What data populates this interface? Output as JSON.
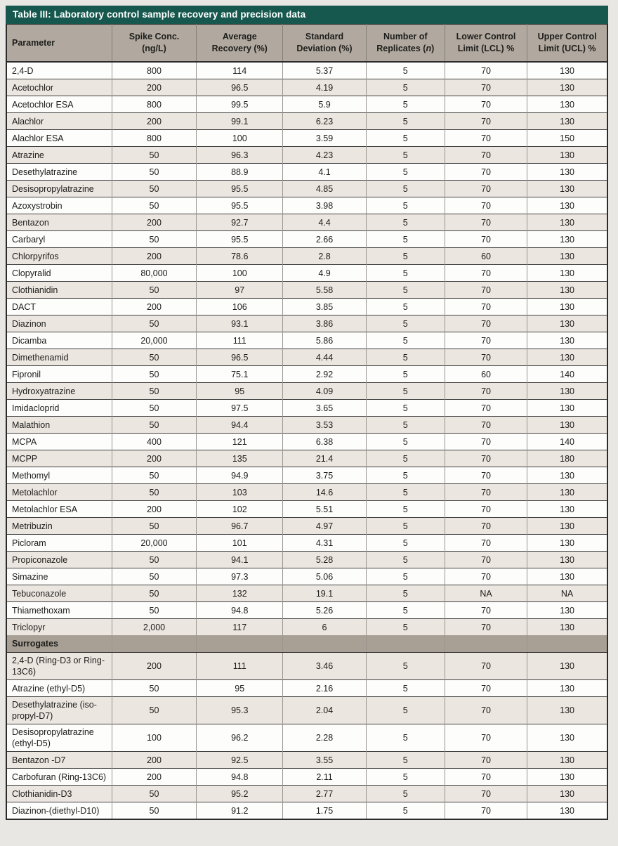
{
  "title": "Table III: Laboratory control sample recovery and precision data",
  "headers": {
    "parameter": "Parameter",
    "spike_1": "Spike Conc.",
    "spike_2": "(ng/L)",
    "recovery_1": "Average",
    "recovery_2": "Recovery (%)",
    "sd_1": "Standard",
    "sd_2": "Deviation (%)",
    "reps_1": "Number of",
    "reps_2_prefix": "Replicates (",
    "reps_2_italic": "n",
    "reps_2_suffix": ")",
    "lcl_1": "Lower Control",
    "lcl_2": "Limit (LCL) %",
    "ucl_1": "Upper Control",
    "ucl_2": "Limit (UCL) %"
  },
  "colors": {
    "title_bar": "#16584e",
    "header_bg": "#b1a99f",
    "section_bg": "#a8a095",
    "alt_row_bg": "#ece6e0",
    "row_bg": "#fdfdfc"
  },
  "rows": [
    [
      "2,4-D",
      "800",
      "114",
      "5.37",
      "5",
      "70",
      "130"
    ],
    [
      "Acetochlor",
      "200",
      "96.5",
      "4.19",
      "5",
      "70",
      "130"
    ],
    [
      "Acetochlor ESA",
      "800",
      "99.5",
      "5.9",
      "5",
      "70",
      "130"
    ],
    [
      "Alachlor",
      "200",
      "99.1",
      "6.23",
      "5",
      "70",
      "130"
    ],
    [
      "Alachlor ESA",
      "800",
      "100",
      "3.59",
      "5",
      "70",
      "150"
    ],
    [
      "Atrazine",
      "50",
      "96.3",
      "4.23",
      "5",
      "70",
      "130"
    ],
    [
      "Desethylatrazine",
      "50",
      "88.9",
      "4.1",
      "5",
      "70",
      "130"
    ],
    [
      "Desisopropylatrazine",
      "50",
      "95.5",
      "4.85",
      "5",
      "70",
      "130"
    ],
    [
      "Azoxystrobin",
      "50",
      "95.5",
      "3.98",
      "5",
      "70",
      "130"
    ],
    [
      "Bentazon",
      "200",
      "92.7",
      "4.4",
      "5",
      "70",
      "130"
    ],
    [
      "Carbaryl",
      "50",
      "95.5",
      "2.66",
      "5",
      "70",
      "130"
    ],
    [
      "Chlorpyrifos",
      "200",
      "78.6",
      "2.8",
      "5",
      "60",
      "130"
    ],
    [
      "Clopyralid",
      "80,000",
      "100",
      "4.9",
      "5",
      "70",
      "130"
    ],
    [
      "Clothianidin",
      "50",
      "97",
      "5.58",
      "5",
      "70",
      "130"
    ],
    [
      "DACT",
      "200",
      "106",
      "3.85",
      "5",
      "70",
      "130"
    ],
    [
      "Diazinon",
      "50",
      "93.1",
      "3.86",
      "5",
      "70",
      "130"
    ],
    [
      "Dicamba",
      "20,000",
      "111",
      "5.86",
      "5",
      "70",
      "130"
    ],
    [
      "Dimethenamid",
      "50",
      "96.5",
      "4.44",
      "5",
      "70",
      "130"
    ],
    [
      "Fipronil",
      "50",
      "75.1",
      "2.92",
      "5",
      "60",
      "140"
    ],
    [
      "Hydroxyatrazine",
      "50",
      "95",
      "4.09",
      "5",
      "70",
      "130"
    ],
    [
      "Imidacloprid",
      "50",
      "97.5",
      "3.65",
      "5",
      "70",
      "130"
    ],
    [
      "Malathion",
      "50",
      "94.4",
      "3.53",
      "5",
      "70",
      "130"
    ],
    [
      "MCPA",
      "400",
      "121",
      "6.38",
      "5",
      "70",
      "140"
    ],
    [
      "MCPP",
      "200",
      "135",
      "21.4",
      "5",
      "70",
      "180"
    ],
    [
      "Methomyl",
      "50",
      "94.9",
      "3.75",
      "5",
      "70",
      "130"
    ],
    [
      "Metolachlor",
      "50",
      "103",
      "14.6",
      "5",
      "70",
      "130"
    ],
    [
      "Metolachlor ESA",
      "200",
      "102",
      "5.51",
      "5",
      "70",
      "130"
    ],
    [
      "Metribuzin",
      "50",
      "96.7",
      "4.97",
      "5",
      "70",
      "130"
    ],
    [
      "Picloram",
      "20,000",
      "101",
      "4.31",
      "5",
      "70",
      "130"
    ],
    [
      "Propiconazole",
      "50",
      "94.1",
      "5.28",
      "5",
      "70",
      "130"
    ],
    [
      "Simazine",
      "50",
      "97.3",
      "5.06",
      "5",
      "70",
      "130"
    ],
    [
      "Tebuconazole",
      "50",
      "132",
      "19.1",
      "5",
      "NA",
      "NA"
    ],
    [
      "Thiamethoxam",
      "50",
      "94.8",
      "5.26",
      "5",
      "70",
      "130"
    ],
    [
      "Triclopyr",
      "2,000",
      "117",
      "6",
      "5",
      "70",
      "130"
    ]
  ],
  "surrogates_label": "Surrogates",
  "surrogate_rows": [
    [
      "2,4-D (Ring-D3 or Ring-13C6)",
      "200",
      "111",
      "3.46",
      "5",
      "70",
      "130"
    ],
    [
      "Atrazine (ethyl-D5)",
      "50",
      "95",
      "2.16",
      "5",
      "70",
      "130"
    ],
    [
      "Desethylatrazine (iso-propyl-D7)",
      "50",
      "95.3",
      "2.04",
      "5",
      "70",
      "130"
    ],
    [
      "Desisopropylatrazine (ethyl-D5)",
      "100",
      "96.2",
      "2.28",
      "5",
      "70",
      "130"
    ],
    [
      "Bentazon -D7",
      "200",
      "92.5",
      "3.55",
      "5",
      "70",
      "130"
    ],
    [
      "Carbofuran (Ring-13C6)",
      "200",
      "94.8",
      "2.11",
      "5",
      "70",
      "130"
    ],
    [
      "Clothianidin-D3",
      "50",
      "95.2",
      "2.77",
      "5",
      "70",
      "130"
    ],
    [
      "Diazinon-(diethyl-D10)",
      "50",
      "91.2",
      "1.75",
      "5",
      "70",
      "130"
    ]
  ]
}
